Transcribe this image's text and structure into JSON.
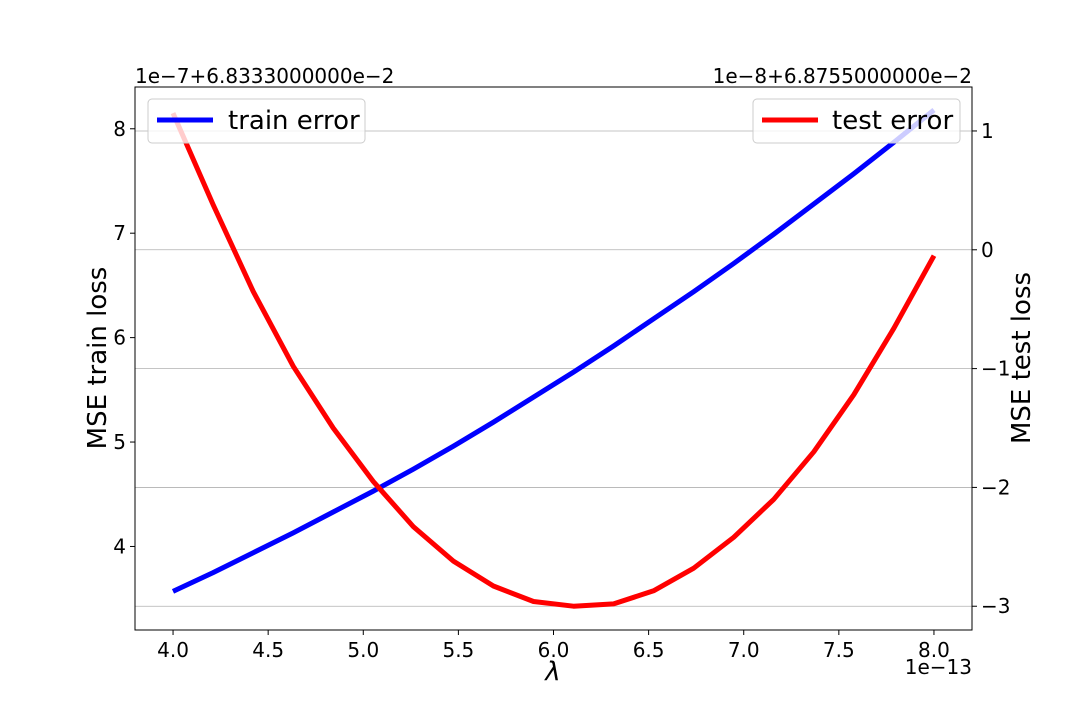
{
  "chart_data": {
    "type": "line",
    "xlabel": "λ",
    "x_offset_label": "1e−13",
    "left_offset_label": "1e−7+6.8333000000e−2",
    "right_offset_label": "1e−8+6.8755000000e−2",
    "ylabel_left": "MSE train loss",
    "ylabel_right": "MSE test loss",
    "xlim": [
      3.8,
      8.2
    ],
    "ylim_left": [
      3.2,
      8.4
    ],
    "ylim_right": [
      -3.2,
      1.37
    ],
    "x_ticks": [
      "4.0",
      "4.5",
      "5.0",
      "5.5",
      "6.0",
      "6.5",
      "7.0",
      "7.5",
      "8.0"
    ],
    "y_ticks_left": [
      "4",
      "5",
      "6",
      "7",
      "8"
    ],
    "y_ticks_right": [
      "1",
      "0",
      "−1",
      "−2",
      "−3"
    ],
    "grid": "horizontal lines at the right-axis ticks",
    "legends": [
      {
        "label": "train error",
        "placement": "upper-left"
      },
      {
        "label": "test error",
        "placement": "upper-right"
      }
    ],
    "series": [
      {
        "name": "train error",
        "axis": "left",
        "color": "#0000ff",
        "x": [
          4.0,
          4.2105,
          4.4211,
          4.6316,
          4.8421,
          5.0526,
          5.2632,
          5.4737,
          5.6842,
          5.8947,
          6.1053,
          6.3158,
          6.5263,
          6.7368,
          6.9474,
          7.1579,
          7.3684,
          7.5789,
          7.7895,
          8.0
        ],
        "y": [
          3.57,
          3.75,
          3.94,
          4.13,
          4.33,
          4.53,
          4.74,
          4.96,
          5.19,
          5.43,
          5.67,
          5.92,
          6.18,
          6.44,
          6.71,
          6.99,
          7.28,
          7.57,
          7.87,
          8.18
        ]
      },
      {
        "name": "test error",
        "axis": "right",
        "color": "#ff0000",
        "x": [
          4.0,
          4.2105,
          4.4211,
          4.6316,
          4.8421,
          5.0526,
          5.2632,
          5.4737,
          5.6842,
          5.8947,
          6.1053,
          6.3158,
          6.5263,
          6.7368,
          6.9474,
          7.1579,
          7.3684,
          7.5789,
          7.7895,
          8.0
        ],
        "y": [
          1.15,
          0.38,
          -0.35,
          -0.98,
          -1.5,
          -1.95,
          -2.33,
          -2.62,
          -2.83,
          -2.96,
          -3.0,
          -2.98,
          -2.87,
          -2.68,
          -2.42,
          -2.1,
          -1.7,
          -1.22,
          -0.66,
          -0.05
        ]
      }
    ]
  }
}
